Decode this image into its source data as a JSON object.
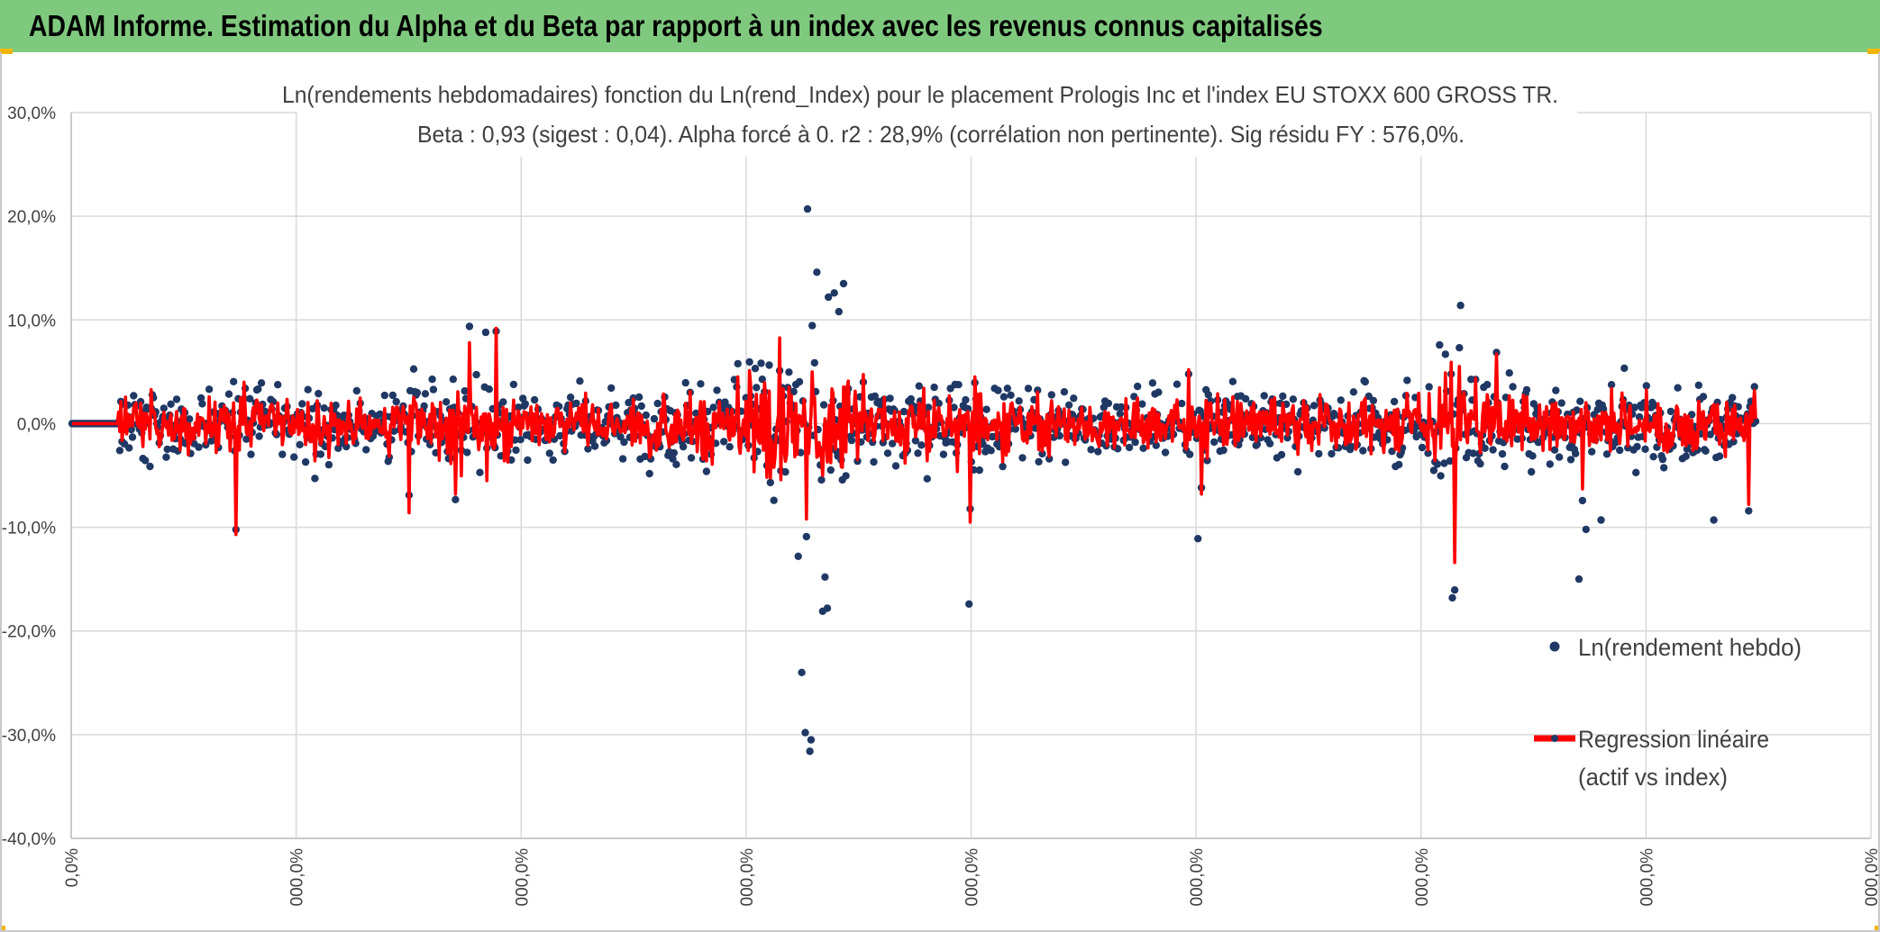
{
  "header": {
    "title": "ADAM Informe. Estimation du Alpha et du Beta par rapport à un index avec les revenus connus capitalisés"
  },
  "colors": {
    "header_bg": "#7fc97f",
    "series_points": "#1f3864",
    "regression_line": "#ff0000",
    "grid": "#d9d9d9",
    "accent_corner": "#f2b705"
  },
  "chart_data": {
    "type": "scatter",
    "title_lines": [
      "Ln(rendements hebdomadaires) fonction du Ln(rend_Index) pour le placement Prologis Inc et l'index EU STOXX 600 GROSS TR.",
      "Beta : 0,93 (sigest : 0,04). Alpha forcé à 0. r2 : 28,9% (corrélation non pertinente). Sig résidu FY : 576,0%."
    ],
    "beta": 0.93,
    "beta_sigest": 0.04,
    "alpha": 0,
    "r2_percent": 28.9,
    "sig_residu_fy_percent": 576.0,
    "y_ticks": [
      "30,0%",
      "20,0%",
      "10,0%",
      "0,0%",
      "-10,0%",
      "-20,0%",
      "-30,0%",
      "-40,0%"
    ],
    "y_values": [
      30,
      20,
      10,
      0,
      -10,
      -20,
      -30,
      -40
    ],
    "ylim": [
      -40,
      30
    ],
    "x_ticks": [
      "0,0%",
      "000,0%",
      "000,0%",
      "000,0%",
      "000,0%",
      "000,0%",
      "000,0%",
      "000,0%",
      "000,0%"
    ],
    "grid": true,
    "legend_position": "right",
    "series": [
      {
        "name": "Ln(rendement hebdo)",
        "kind": "points"
      },
      {
        "name": "Regression linéaire (actif vs index)",
        "name_lines": [
          "Regression linéaire",
          "(actif vs index)"
        ],
        "kind": "line"
      }
    ],
    "n_points": 1450,
    "flat_start_points": 40,
    "outliers": [
      [
        628,
        21.0
      ],
      [
        633,
        20.7
      ],
      [
        641,
        14.6
      ],
      [
        664,
        13.5
      ],
      [
        651,
        12.2
      ],
      [
        656,
        12.6
      ],
      [
        660,
        10.8
      ],
      [
        1195,
        11.4
      ],
      [
        356,
        8.8
      ],
      [
        1474,
        7.4
      ],
      [
        632,
        -10.9
      ],
      [
        625,
        -12.8
      ],
      [
        1188,
        -16.8
      ],
      [
        650,
        -17.8
      ],
      [
        646,
        -18.1
      ],
      [
        648,
        -14.8
      ],
      [
        772,
        -17.4
      ],
      [
        969,
        -11.1
      ],
      [
        1297,
        -15.0
      ],
      [
        1303,
        -10.2
      ],
      [
        1467,
        -14.8
      ],
      [
        1413,
        -9.3
      ],
      [
        1316,
        -9.3
      ],
      [
        628,
        -24.0
      ],
      [
        631,
        -29.8
      ],
      [
        636,
        -30.5
      ],
      [
        635,
        -31.6
      ]
    ],
    "red_spikes": [
      [
        141,
        -10.7
      ],
      [
        148,
        4.0
      ],
      [
        290,
        -8.6
      ],
      [
        330,
        -6.8
      ],
      [
        342,
        7.8
      ],
      [
        365,
        9.2
      ],
      [
        357,
        -5.5
      ],
      [
        632,
        -9.2
      ],
      [
        637,
        5.0
      ],
      [
        646,
        -5.0
      ],
      [
        773,
        -9.5
      ],
      [
        777,
        4.5
      ],
      [
        961,
        5.2
      ],
      [
        972,
        -6.8
      ],
      [
        1190,
        -13.4
      ],
      [
        1194,
        5.5
      ],
      [
        1226,
        6.7
      ],
      [
        1300,
        -6.3
      ],
      [
        1443,
        -7.8
      ],
      [
        1448,
        3.2
      ]
    ]
  },
  "legend": {
    "points_label": "Ln(rendement hebdo)",
    "line_label_1": "Regression linéaire",
    "line_label_2": "(actif vs index)"
  }
}
